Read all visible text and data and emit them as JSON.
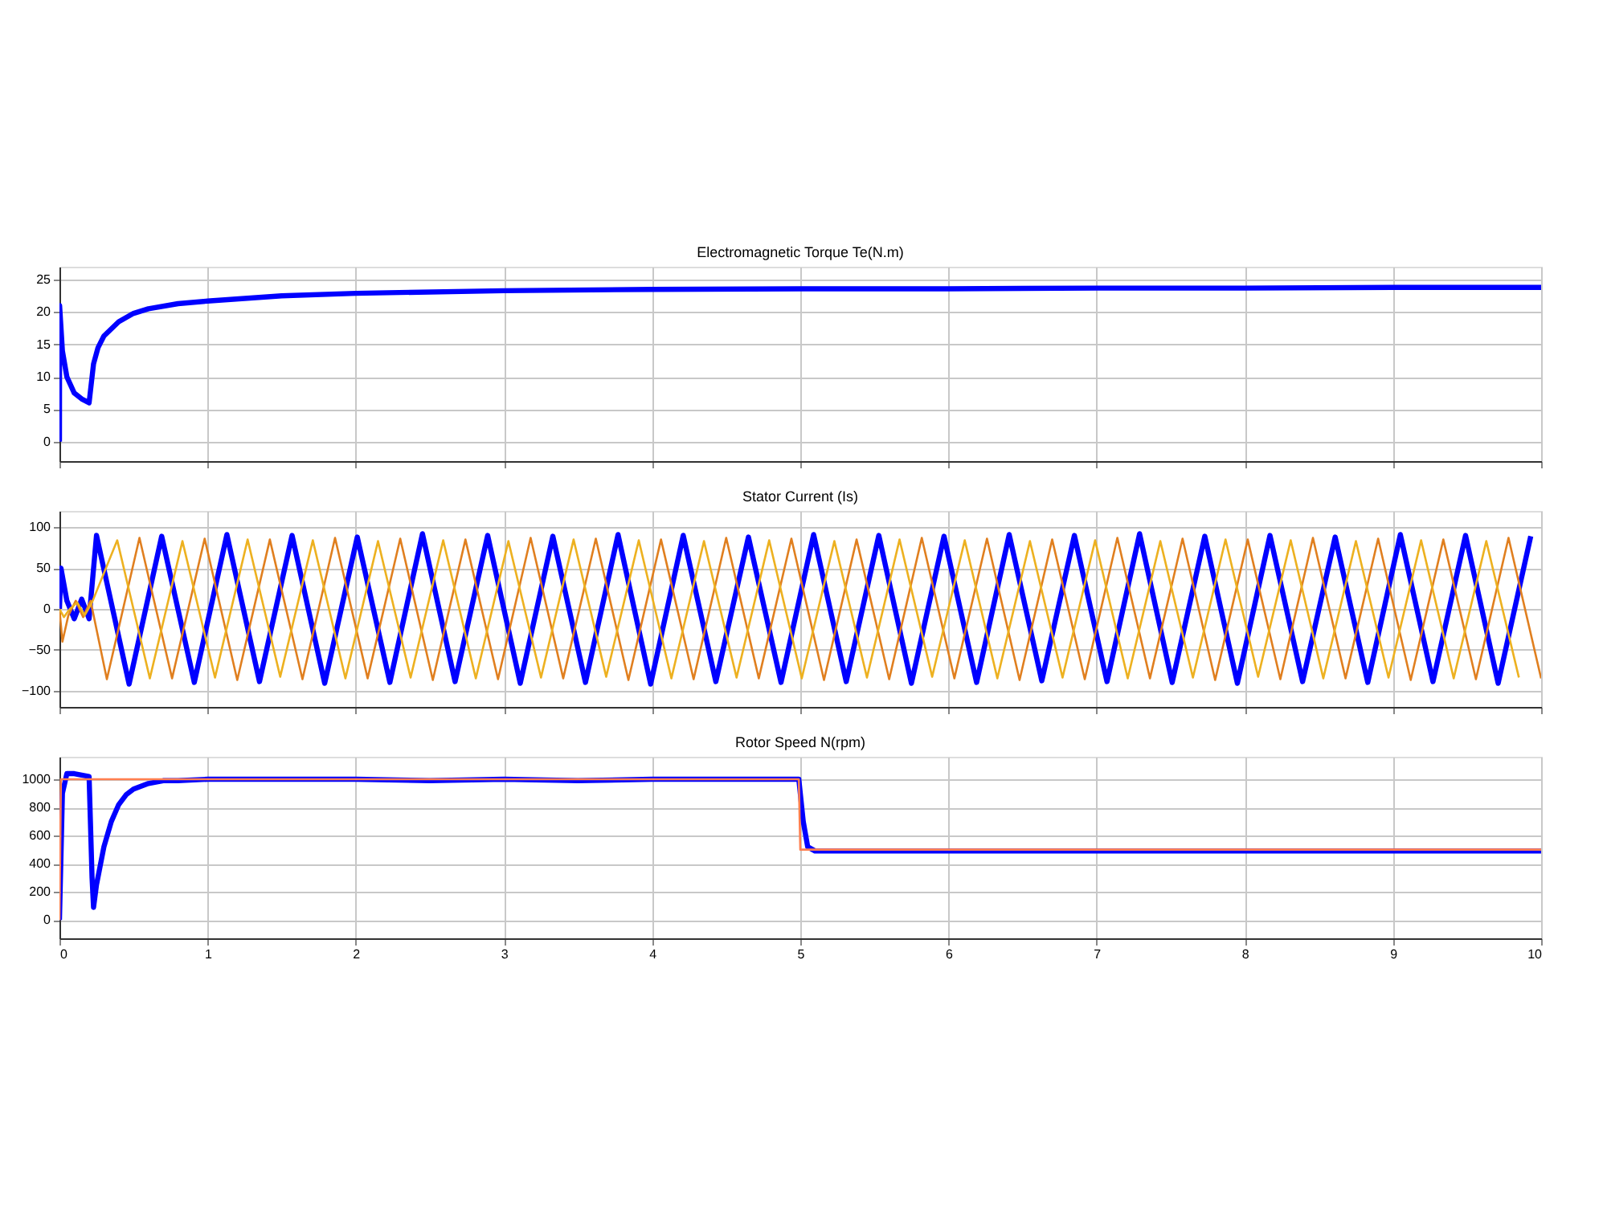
{
  "chart_data": [
    {
      "type": "line",
      "title": "Electromagnetic Torque Te(N.m)",
      "xlim": [
        0,
        10
      ],
      "xticks": [
        0,
        1,
        2,
        3,
        4,
        5,
        6,
        7,
        8,
        9,
        10
      ],
      "ylim": [
        -3,
        27
      ],
      "yticks": [
        0,
        5,
        10,
        15,
        20,
        25
      ],
      "grid": true,
      "tick_labels": "y",
      "series": [
        {
          "color": "#0000ff",
          "x": [
            0,
            0.001,
            0.02,
            0.05,
            0.1,
            0.15,
            0.2,
            0.23,
            0.26,
            0.3,
            0.4,
            0.5,
            0.6,
            0.8,
            1,
            1.5,
            2,
            3,
            4,
            5,
            6,
            7,
            8,
            9,
            10
          ],
          "values": [
            0,
            21,
            14,
            10,
            7.5,
            6.6,
            6,
            12,
            14.5,
            16.3,
            18.5,
            19.8,
            20.5,
            21.3,
            21.7,
            22.5,
            22.9,
            23.3,
            23.5,
            23.6,
            23.6,
            23.7,
            23.7,
            23.8,
            23.8
          ]
        }
      ]
    },
    {
      "type": "line",
      "title": "Stator Current (Is)",
      "xlim": [
        0,
        10
      ],
      "xticks": [
        0,
        1,
        2,
        3,
        4,
        5,
        6,
        7,
        8,
        9,
        10
      ],
      "ylim": [
        -120,
        120
      ],
      "yticks": [
        -100,
        -50,
        0,
        50,
        100
      ],
      "grid": true,
      "tick_labels": "y",
      "series": [
        {
          "color": "#0000ff",
          "x": [
            0,
            0.01,
            0.05,
            0.1,
            0.15,
            0.2,
            0.25,
            0.47,
            0.69,
            0.91,
            1.13,
            1.35,
            1.57,
            1.79,
            2.01,
            2.23,
            2.45,
            2.67,
            2.89,
            3.11,
            3.33,
            3.55,
            3.77,
            3.99,
            4.21,
            4.43,
            4.65,
            4.87,
            5.09,
            5.31,
            5.53,
            5.75,
            5.97,
            6.19,
            6.41,
            6.63,
            6.85,
            7.07,
            7.29,
            7.51,
            7.73,
            7.95,
            8.17,
            8.39,
            8.61,
            8.83,
            9.05,
            9.27,
            9.49,
            9.71,
            9.93
          ],
          "values": [
            0,
            50,
            10,
            -12,
            12,
            -12,
            90,
            -92,
            89,
            -90,
            91,
            -89,
            90,
            -91,
            88,
            -90,
            92,
            -89,
            90,
            -91,
            89,
            -90,
            91,
            -92,
            90,
            -89,
            88,
            -90,
            91,
            -89,
            90,
            -91,
            89,
            -90,
            91,
            -88,
            90,
            -89,
            92,
            -90,
            89,
            -91,
            90,
            -89,
            88,
            -90,
            91,
            -89,
            90,
            -91,
            89
          ]
        },
        {
          "color": "#e07f1f",
          "x": [
            0,
            0.02,
            0.06,
            0.11,
            0.16,
            0.21,
            0.32,
            0.54,
            0.76,
            0.98,
            1.2,
            1.42,
            1.64,
            1.86,
            2.08,
            2.3,
            2.52,
            2.74,
            2.96,
            3.18,
            3.4,
            3.62,
            3.84,
            4.06,
            4.28,
            4.5,
            4.72,
            4.94,
            5.16,
            5.38,
            5.6,
            5.82,
            6.04,
            6.26,
            6.48,
            6.7,
            6.92,
            7.14,
            7.36,
            7.58,
            7.8,
            8.02,
            8.24,
            8.46,
            8.68,
            8.9,
            9.12,
            9.34,
            9.56,
            9.78,
            10
          ],
          "values": [
            0,
            -40,
            -8,
            10,
            -10,
            10,
            -86,
            87,
            -85,
            86,
            -87,
            85,
            -86,
            87,
            -85,
            86,
            -87,
            85,
            -86,
            87,
            -85,
            86,
            -87,
            85,
            -86,
            87,
            -85,
            86,
            -87,
            85,
            -86,
            87,
            -85,
            86,
            -87,
            85,
            -86,
            87,
            -85,
            86,
            -87,
            85,
            -86,
            87,
            -85,
            86,
            -87,
            85,
            -86,
            87,
            -85
          ]
        },
        {
          "color": "#edb120",
          "x": [
            0,
            0.03,
            0.07,
            0.12,
            0.17,
            0.22,
            0.39,
            0.61,
            0.83,
            1.05,
            1.27,
            1.49,
            1.71,
            1.93,
            2.15,
            2.37,
            2.59,
            2.81,
            3.03,
            3.25,
            3.47,
            3.69,
            3.91,
            4.13,
            4.35,
            4.57,
            4.79,
            5.01,
            5.23,
            5.45,
            5.67,
            5.89,
            6.11,
            6.33,
            6.55,
            6.77,
            6.99,
            7.21,
            7.43,
            7.65,
            7.87,
            8.09,
            8.31,
            8.53,
            8.75,
            8.97,
            9.19,
            9.41,
            9.63,
            9.85
          ],
          "values": [
            0,
            -10,
            0,
            8,
            -8,
            8,
            84,
            -85,
            83,
            -84,
            85,
            -83,
            84,
            -85,
            83,
            -84,
            84,
            -85,
            83,
            -84,
            85,
            -83,
            84,
            -85,
            83,
            -84,
            84,
            -85,
            83,
            -84,
            85,
            -83,
            84,
            -85,
            83,
            -84,
            84,
            -85,
            83,
            -84,
            85,
            -83,
            84,
            -85,
            83,
            -84,
            84,
            -85,
            83,
            -84
          ]
        }
      ]
    },
    {
      "type": "line",
      "title": "Rotor Speed N(rpm)",
      "xlim": [
        0,
        10
      ],
      "xticks": [
        0,
        1,
        2,
        3,
        4,
        5,
        6,
        7,
        8,
        9,
        10
      ],
      "ylim": [
        -130,
        1160
      ],
      "yticks": [
        0,
        200,
        400,
        600,
        800,
        1000
      ],
      "grid": true,
      "series": [
        {
          "color": "#0000ff",
          "x": [
            0,
            0.02,
            0.05,
            0.1,
            0.2,
            0.22,
            0.23,
            0.25,
            0.3,
            0.35,
            0.4,
            0.45,
            0.5,
            0.6,
            0.7,
            0.8,
            1,
            1.5,
            2,
            2.5,
            3,
            3.5,
            4,
            4.5,
            4.99,
            5.02,
            5.05,
            5.1,
            5.5,
            6,
            7,
            8,
            9,
            10
          ],
          "values": [
            0,
            900,
            1040,
            1040,
            1020,
            300,
            90,
            250,
            520,
            700,
            820,
            890,
            930,
            970,
            990,
            990,
            1000,
            1000,
            1000,
            990,
            1000,
            990,
            1000,
            1000,
            1000,
            700,
            520,
            490,
            490,
            490,
            490,
            490,
            490,
            490
          ]
        },
        {
          "color": "#ff7f50",
          "x": [
            0,
            0.01,
            4.99,
            5,
            10
          ],
          "values": [
            0,
            1000,
            1000,
            500,
            500
          ]
        }
      ]
    }
  ]
}
